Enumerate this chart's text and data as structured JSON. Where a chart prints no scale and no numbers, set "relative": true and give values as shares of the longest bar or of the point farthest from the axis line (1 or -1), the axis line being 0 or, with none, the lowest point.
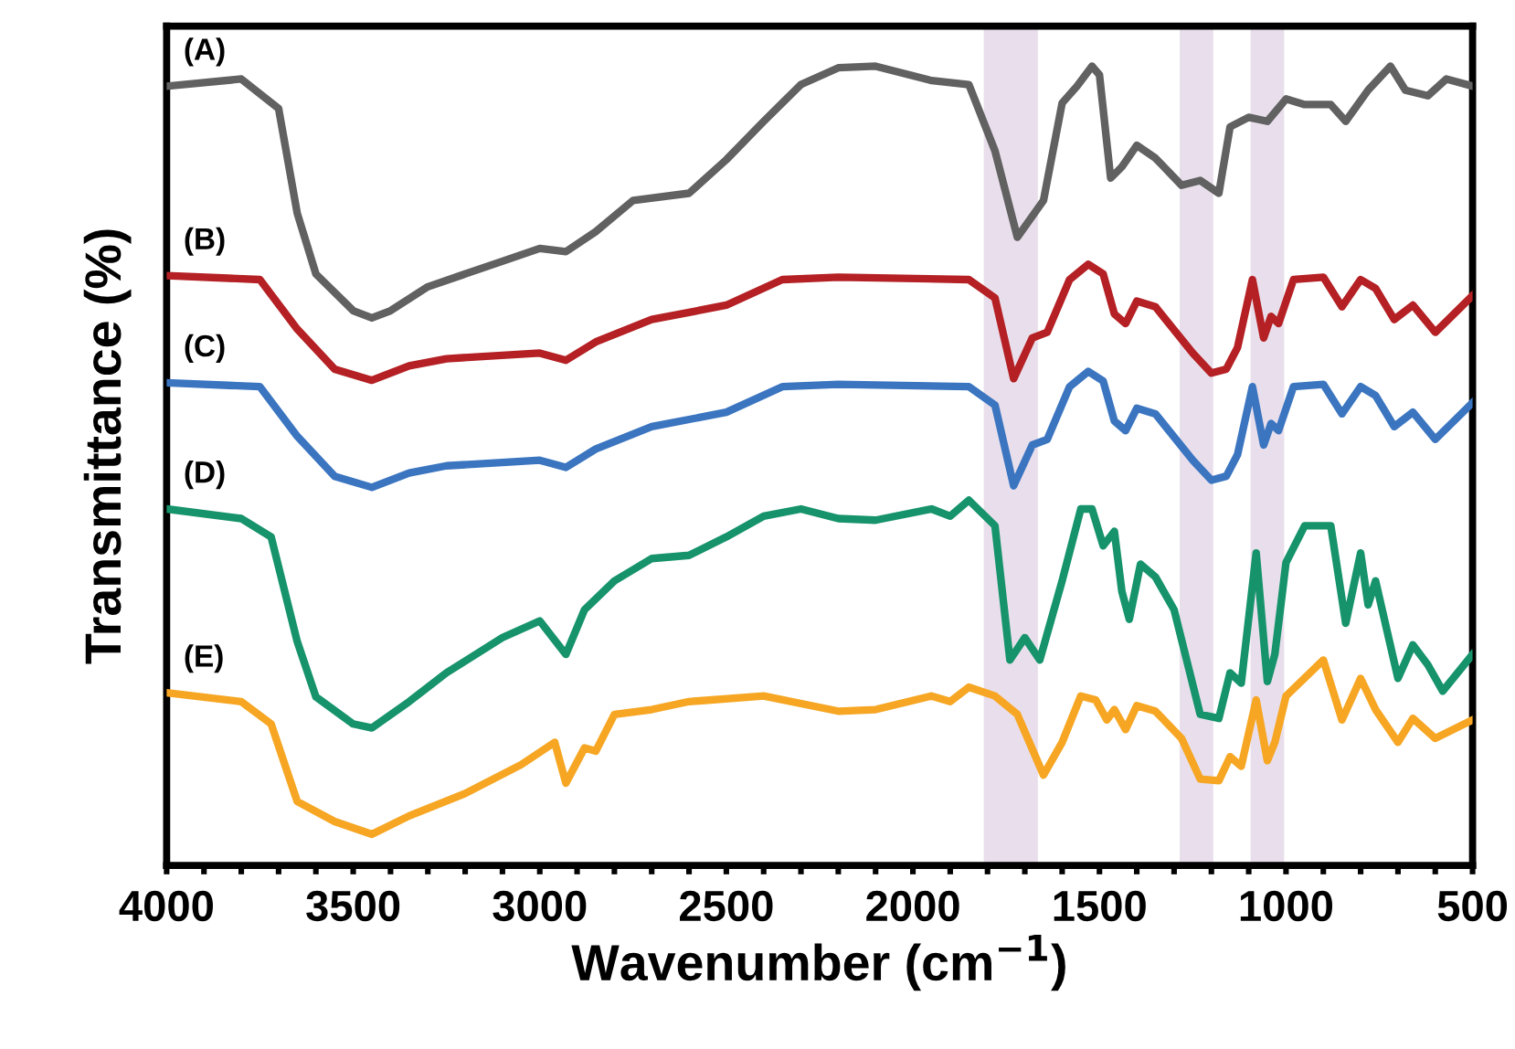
{
  "chart_data": {
    "type": "line",
    "relative": true,
    "xlabel": "Wavenumber (cm$^{−1}$)",
    "ylabel": "Transmittance (%)",
    "xlim": [
      4000,
      500
    ],
    "xticks": [
      4000,
      {
        "value": 3900,
        "label": null
      },
      {
        "value": 3800,
        "label": null
      },
      {
        "value": 3700,
        "label": null
      },
      {
        "value": 3600,
        "label": null
      },
      3500,
      {
        "value": 3400,
        "label": null
      },
      {
        "value": 3300,
        "label": null
      },
      {
        "value": 3200,
        "label": null
      },
      {
        "value": 3100,
        "label": null
      },
      3000,
      {
        "value": 2900,
        "label": null
      },
      {
        "value": 2800,
        "label": null
      },
      {
        "value": 2700,
        "label": null
      },
      {
        "value": 2600,
        "label": null
      },
      2500,
      {
        "value": 2400,
        "label": null
      },
      {
        "value": 2300,
        "label": null
      },
      {
        "value": 2200,
        "label": null
      },
      {
        "value": 2100,
        "label": null
      },
      2000,
      {
        "value": 1900,
        "label": null
      },
      {
        "value": 1800,
        "label": null
      },
      {
        "value": 1700,
        "label": null
      },
      {
        "value": 1600,
        "label": null
      },
      1500,
      {
        "value": 1400,
        "label": null
      },
      {
        "value": 1300,
        "label": null
      },
      {
        "value": 1200,
        "label": null
      },
      {
        "value": 1100,
        "label": null
      },
      1000,
      {
        "value": 900,
        "label": null
      },
      {
        "value": 800,
        "label": null
      },
      {
        "value": 700,
        "label": null
      },
      {
        "value": 600,
        "label": null
      },
      500
    ],
    "grid": false,
    "legend": false,
    "line_style": "solid",
    "marker": "none",
    "bands": [
      {
        "axis": "x",
        "from": 1810,
        "to": 1665,
        "color": "#e9dfec"
      },
      {
        "axis": "x",
        "from": 1285,
        "to": 1195,
        "color": "#e9dfec"
      },
      {
        "axis": "x",
        "from": 1095,
        "to": 1005,
        "color": "#e9dfec"
      }
    ],
    "series": [
      {
        "name": "(A)",
        "color": "#616161",
        "x": [
          4000,
          3800,
          3700,
          3650,
          3600,
          3500,
          3450,
          3400,
          3300,
          3100,
          3000,
          2930,
          2850,
          2750,
          2600,
          2500,
          2400,
          2300,
          2200,
          2100,
          1950,
          1850,
          1780,
          1720,
          1650,
          1600,
          1560,
          1520,
          1500,
          1470,
          1440,
          1400,
          1350,
          1280,
          1230,
          1180,
          1150,
          1100,
          1050,
          1000,
          950,
          880,
          840,
          780,
          720,
          680,
          620,
          570,
          500
        ],
        "values": [
          0.975,
          0.984,
          0.947,
          0.816,
          0.74,
          0.694,
          0.685,
          0.694,
          0.724,
          0.756,
          0.772,
          0.768,
          0.793,
          0.832,
          0.841,
          0.883,
          0.931,
          0.977,
          0.998,
          1.0,
          0.982,
          0.977,
          0.894,
          0.786,
          0.832,
          0.954,
          0.975,
          1.0,
          0.989,
          0.86,
          0.874,
          0.901,
          0.885,
          0.851,
          0.857,
          0.841,
          0.924,
          0.936,
          0.931,
          0.959,
          0.952,
          0.952,
          0.931,
          0.97,
          1.0,
          0.97,
          0.963,
          0.984,
          0.975
        ]
      },
      {
        "name": "(B)",
        "color": "#b42024",
        "x": [
          4000,
          3750,
          3650,
          3550,
          3450,
          3350,
          3250,
          3000,
          2930,
          2850,
          2700,
          2500,
          2350,
          2200,
          1850,
          1780,
          1730,
          1680,
          1640,
          1580,
          1530,
          1490,
          1460,
          1430,
          1400,
          1350,
          1250,
          1200,
          1160,
          1130,
          1090,
          1060,
          1040,
          1020,
          980,
          900,
          850,
          800,
          760,
          710,
          660,
          600,
          500
        ],
        "values": [
          0.738,
          0.733,
          0.671,
          0.621,
          0.607,
          0.625,
          0.634,
          0.641,
          0.632,
          0.655,
          0.683,
          0.701,
          0.733,
          0.736,
          0.733,
          0.71,
          0.609,
          0.66,
          0.667,
          0.733,
          0.752,
          0.74,
          0.69,
          0.678,
          0.706,
          0.699,
          0.641,
          0.616,
          0.621,
          0.648,
          0.733,
          0.66,
          0.687,
          0.678,
          0.733,
          0.736,
          0.699,
          0.733,
          0.722,
          0.683,
          0.701,
          0.667,
          0.713
        ]
      },
      {
        "name": "(C)",
        "color": "#3b75c0",
        "x": [
          4000,
          3750,
          3650,
          3550,
          3450,
          3350,
          3250,
          3000,
          2930,
          2850,
          2700,
          2500,
          2350,
          2200,
          1850,
          1780,
          1730,
          1680,
          1640,
          1580,
          1530,
          1490,
          1460,
          1430,
          1400,
          1350,
          1250,
          1200,
          1160,
          1130,
          1090,
          1060,
          1040,
          1020,
          980,
          900,
          850,
          800,
          760,
          710,
          660,
          600,
          500
        ],
        "values": [
          0.604,
          0.599,
          0.537,
          0.487,
          0.473,
          0.491,
          0.5,
          0.507,
          0.498,
          0.521,
          0.549,
          0.567,
          0.599,
          0.602,
          0.599,
          0.576,
          0.475,
          0.526,
          0.533,
          0.599,
          0.618,
          0.606,
          0.556,
          0.544,
          0.572,
          0.565,
          0.507,
          0.482,
          0.487,
          0.514,
          0.599,
          0.526,
          0.553,
          0.544,
          0.599,
          0.602,
          0.565,
          0.599,
          0.588,
          0.549,
          0.567,
          0.533,
          0.579
        ]
      },
      {
        "name": "(D)",
        "color": "#16936b",
        "x": [
          4000,
          3800,
          3720,
          3650,
          3600,
          3500,
          3450,
          3350,
          3250,
          3100,
          3000,
          2930,
          2880,
          2800,
          2700,
          2600,
          2500,
          2400,
          2300,
          2200,
          2100,
          1950,
          1900,
          1850,
          1780,
          1740,
          1700,
          1660,
          1600,
          1550,
          1520,
          1490,
          1460,
          1440,
          1420,
          1390,
          1350,
          1300,
          1230,
          1180,
          1150,
          1120,
          1080,
          1050,
          1030,
          1000,
          950,
          880,
          840,
          800,
          780,
          760,
          700,
          660,
          620,
          580,
          500
        ],
        "values": [
          0.446,
          0.434,
          0.411,
          0.28,
          0.211,
          0.177,
          0.172,
          0.205,
          0.241,
          0.285,
          0.306,
          0.264,
          0.32,
          0.356,
          0.384,
          0.388,
          0.411,
          0.437,
          0.446,
          0.434,
          0.432,
          0.446,
          0.437,
          0.457,
          0.425,
          0.257,
          0.285,
          0.257,
          0.356,
          0.446,
          0.446,
          0.4,
          0.418,
          0.343,
          0.308,
          0.377,
          0.361,
          0.32,
          0.189,
          0.184,
          0.241,
          0.228,
          0.391,
          0.23,
          0.264,
          0.379,
          0.425,
          0.425,
          0.303,
          0.391,
          0.326,
          0.356,
          0.234,
          0.276,
          0.251,
          0.218,
          0.264
        ]
      },
      {
        "name": "(E)",
        "color": "#f6a623",
        "x": [
          4000,
          3800,
          3720,
          3650,
          3550,
          3450,
          3350,
          3200,
          3050,
          2960,
          2930,
          2880,
          2850,
          2800,
          2700,
          2600,
          2400,
          2200,
          2100,
          1950,
          1900,
          1850,
          1780,
          1720,
          1650,
          1600,
          1550,
          1510,
          1480,
          1460,
          1430,
          1400,
          1350,
          1280,
          1230,
          1180,
          1150,
          1120,
          1080,
          1050,
          1030,
          1000,
          900,
          850,
          800,
          760,
          700,
          660,
          600,
          500
        ],
        "values": [
          0.216,
          0.205,
          0.177,
          0.08,
          0.055,
          0.039,
          0.062,
          0.09,
          0.126,
          0.154,
          0.103,
          0.147,
          0.143,
          0.189,
          0.195,
          0.205,
          0.212,
          0.193,
          0.195,
          0.212,
          0.205,
          0.223,
          0.212,
          0.189,
          0.113,
          0.154,
          0.212,
          0.207,
          0.182,
          0.195,
          0.17,
          0.2,
          0.193,
          0.159,
          0.108,
          0.106,
          0.136,
          0.124,
          0.207,
          0.131,
          0.154,
          0.212,
          0.257,
          0.182,
          0.234,
          0.195,
          0.154,
          0.184,
          0.159,
          0.182
        ]
      }
    ]
  }
}
